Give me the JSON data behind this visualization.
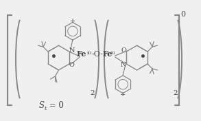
{
  "bg_color": "#f0f0f0",
  "line_color": "#888888",
  "text_color": "#444444",
  "figsize": [
    2.93,
    1.76
  ],
  "dpi": 100,
  "st_label": "S",
  "st_sub": "t",
  "st_rest": " = 0",
  "charge_label": "0",
  "sub2": "2"
}
